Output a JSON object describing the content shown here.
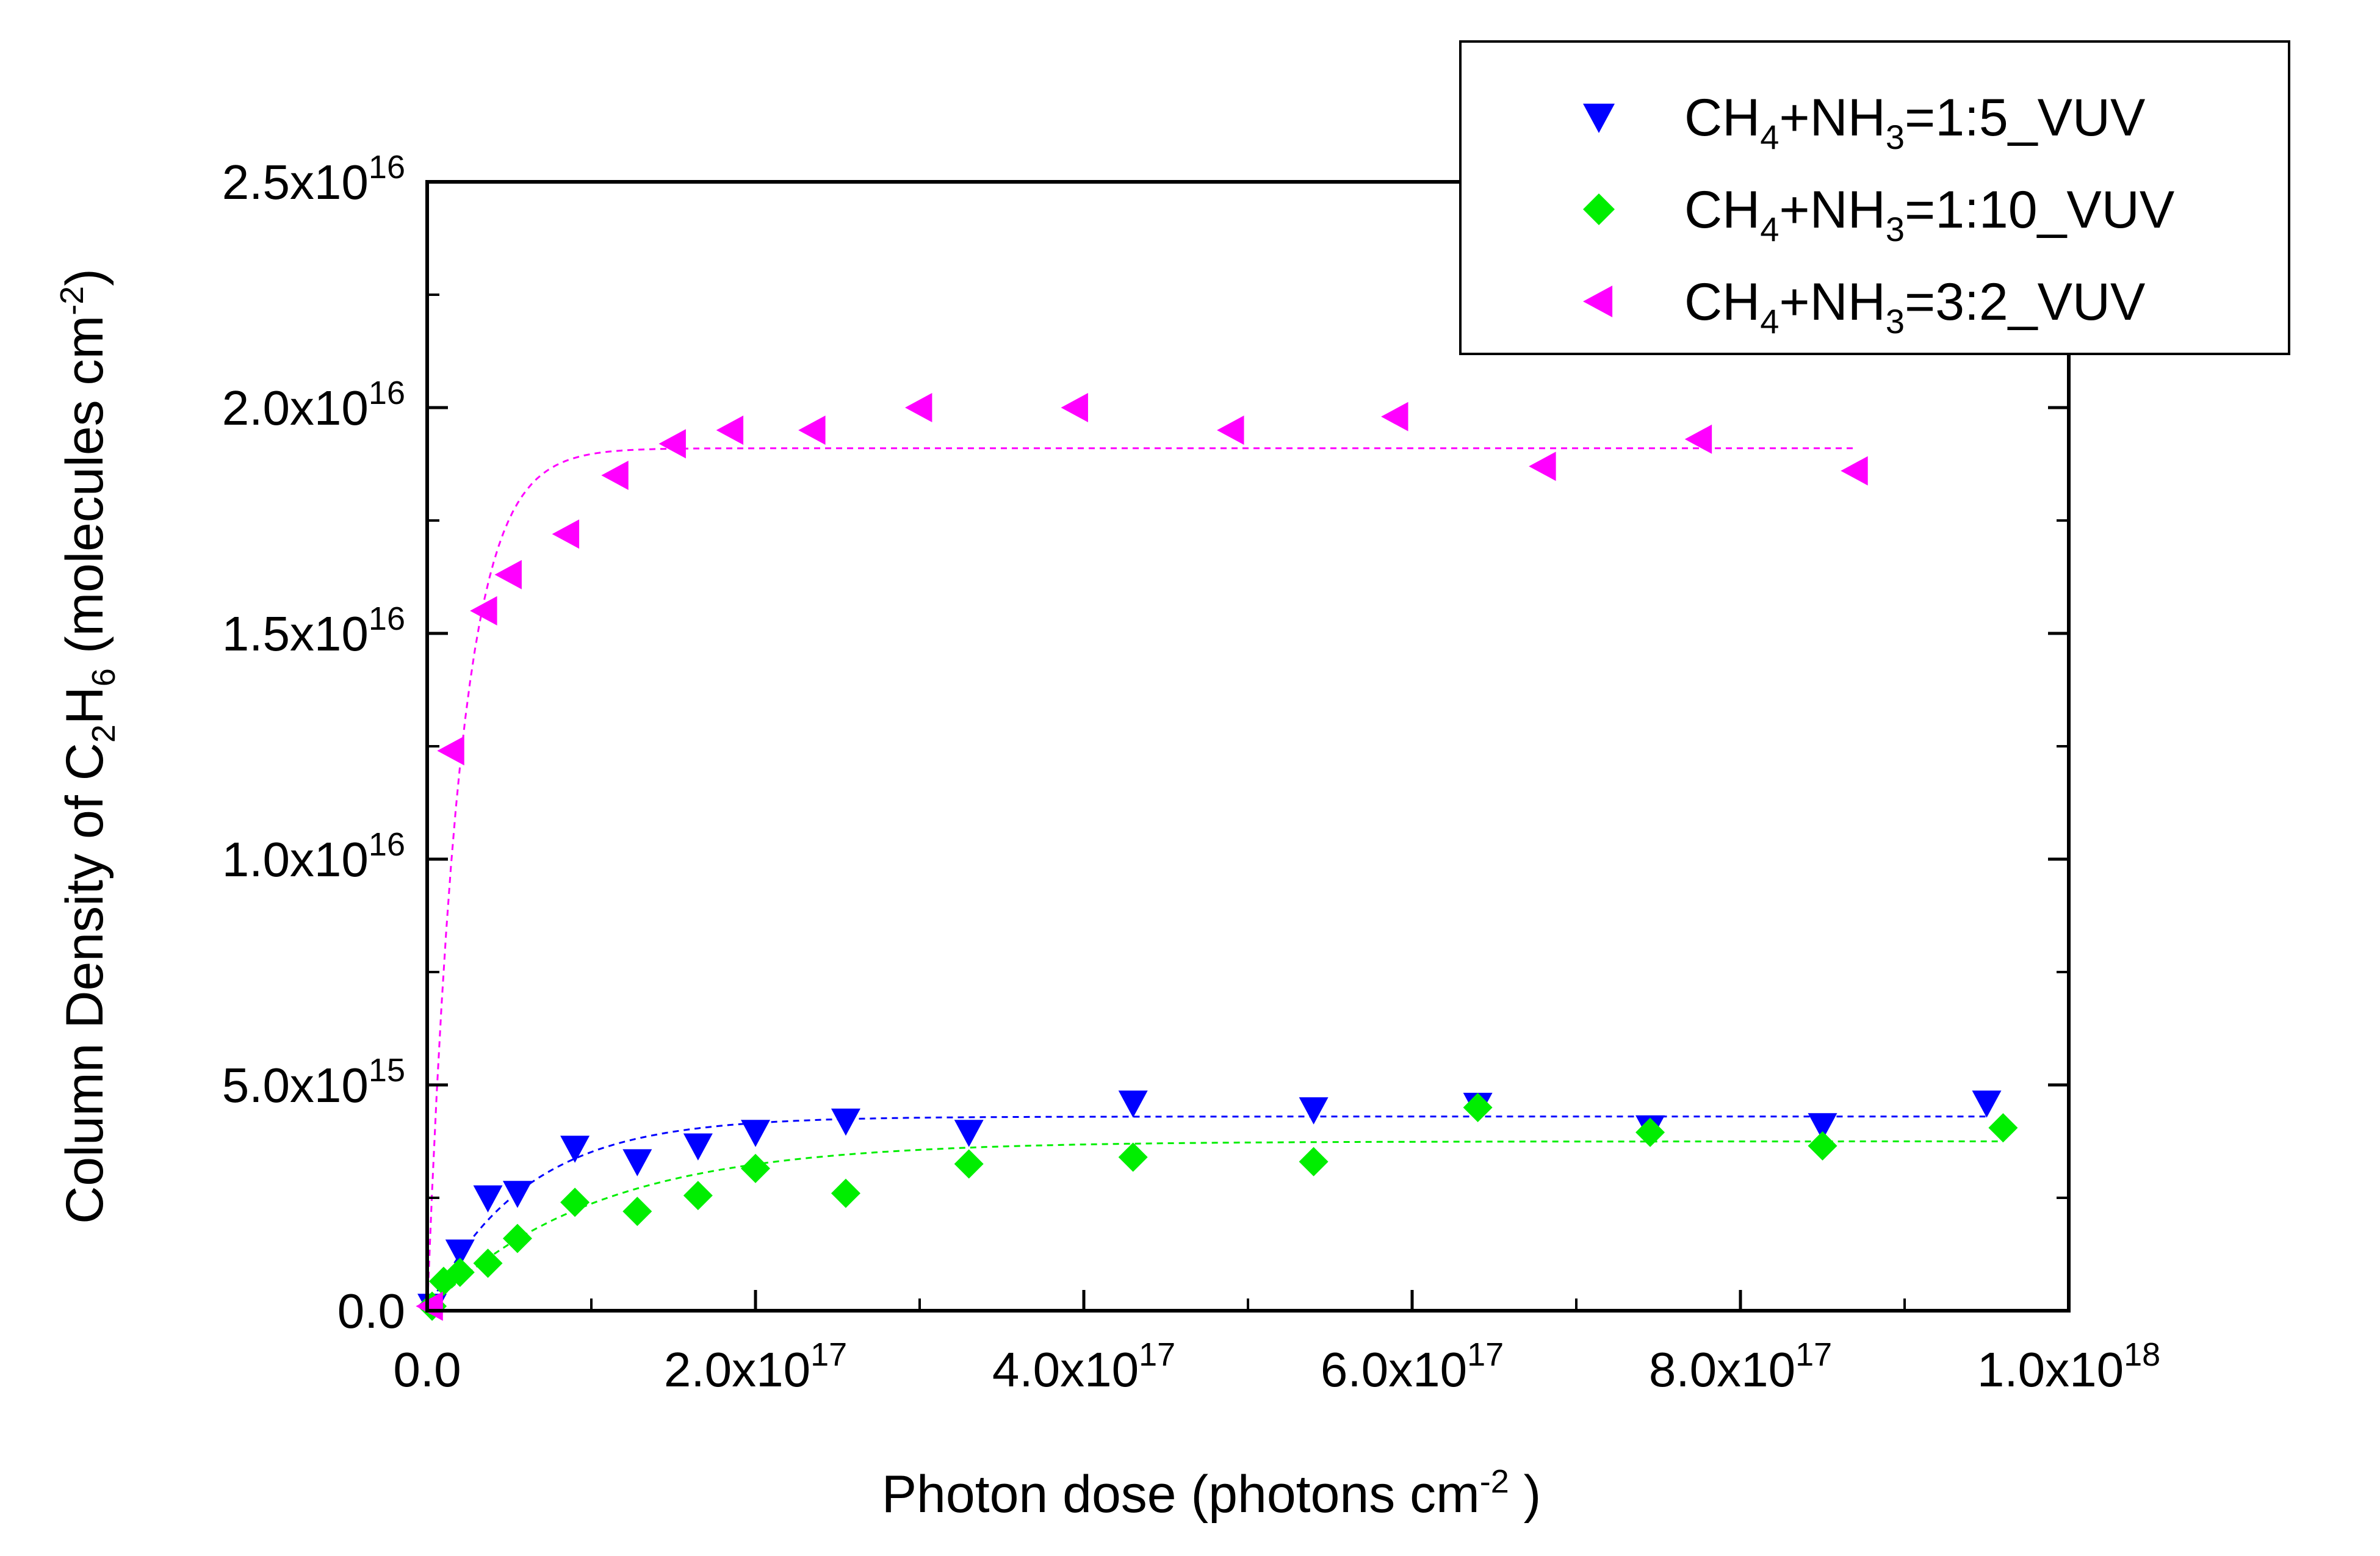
{
  "chart_data": {
    "type": "scatter",
    "xlabel": "Photon dose (photons cm⁻² )",
    "ylabel": "Column Density of C₂H₆ (molecules cm⁻²)",
    "xlim": [
      0,
      1e+18
    ],
    "ylim": [
      0,
      2.5e+16
    ],
    "x_ticks": [
      {
        "value": 0,
        "label": "0.0",
        "exp": ""
      },
      {
        "value": 2e+17,
        "label": "2.0x10",
        "exp": "17"
      },
      {
        "value": 4e+17,
        "label": "4.0x10",
        "exp": "17"
      },
      {
        "value": 6e+17,
        "label": "6.0x10",
        "exp": "17"
      },
      {
        "value": 8e+17,
        "label": "8.0x10",
        "exp": "17"
      },
      {
        "value": 1e+18,
        "label": "1.0x10",
        "exp": "18"
      }
    ],
    "y_ticks": [
      {
        "value": 0,
        "label": "0.0",
        "exp": ""
      },
      {
        "value": 5000000000000000.0,
        "label": "5.0x10",
        "exp": "15"
      },
      {
        "value": 1e+16,
        "label": "1.0x10",
        "exp": "16"
      },
      {
        "value": 1.5e+16,
        "label": "1.5x10",
        "exp": "16"
      },
      {
        "value": 2e+16,
        "label": "2.0x10",
        "exp": "16"
      },
      {
        "value": 2.5e+16,
        "label": "2.5x10",
        "exp": "16"
      }
    ],
    "grid": false,
    "legend_position": "top-right",
    "series": [
      {
        "name": "CH₄+NH₃=1:5_VUV",
        "color": "#0000ff",
        "marker": "triangle-down",
        "points": [
          [
            3000000000000000.0,
            100000000000000.0
          ],
          [
            2e+16,
            1300000000000000.0
          ],
          [
            3.7e+16,
            2500000000000000.0
          ],
          [
            5.5e+16,
            2600000000000000.0
          ],
          [
            9e+16,
            3600000000000000.0
          ],
          [
            1.28e+17,
            3300000000000000.0
          ],
          [
            1.65e+17,
            3650000000000000.0
          ],
          [
            2e+17,
            3950000000000000.0
          ],
          [
            2.55e+17,
            4200000000000000.0
          ],
          [
            3.3e+17,
            3950000000000000.0
          ],
          [
            4.3e+17,
            4600000000000000.0
          ],
          [
            5.4e+17,
            4450000000000000.0
          ],
          [
            6.4e+17,
            4550000000000000.0
          ],
          [
            7.45e+17,
            4050000000000000.0
          ],
          [
            8.5e+17,
            4100000000000000.0
          ],
          [
            9.5e+17,
            4600000000000000.0
          ]
        ],
        "fit": {
          "plateau": 4300000000000000.0,
          "rate": 1.7e-17
        }
      },
      {
        "name": "CH₄+NH₃=1:10_VUV",
        "color": "#00ee00",
        "marker": "diamond",
        "points": [
          [
            3000000000000000.0,
            100000000000000.0
          ],
          [
            1e+16,
            650000000000000.0
          ],
          [
            2e+16,
            850000000000000.0
          ],
          [
            3.7e+16,
            1050000000000000.0
          ],
          [
            5.5e+16,
            1600000000000000.0
          ],
          [
            9e+16,
            2400000000000000.0
          ],
          [
            1.28e+17,
            2200000000000000.0
          ],
          [
            1.65e+17,
            2550000000000000.0
          ],
          [
            2e+17,
            3150000000000000.0
          ],
          [
            2.55e+17,
            2600000000000000.0
          ],
          [
            3.3e+17,
            3250000000000000.0
          ],
          [
            4.3e+17,
            3400000000000000.0
          ],
          [
            5.4e+17,
            3300000000000000.0
          ],
          [
            6.4e+17,
            4500000000000000.0
          ],
          [
            7.45e+17,
            3950000000000000.0
          ],
          [
            8.5e+17,
            3650000000000000.0
          ],
          [
            9.6e+17,
            4050000000000000.0
          ]
        ],
        "fit": {
          "plateau": 3750000000000000.0,
          "rate": 1e-17
        }
      },
      {
        "name": "CH₄+NH₃=3:2_VUV",
        "color": "#ff00ff",
        "marker": "triangle-left",
        "points": [
          [
            2000000000000000.0,
            100000000000000.0
          ],
          [
            1.5e+16,
            1.24e+16
          ],
          [
            3.5e+16,
            1.55e+16
          ],
          [
            5e+16,
            1.63e+16
          ],
          [
            8.5e+16,
            1.72e+16
          ],
          [
            1.15e+17,
            1.85e+16
          ],
          [
            1.5e+17,
            1.92e+16
          ],
          [
            1.85e+17,
            1.95e+16
          ],
          [
            2.35e+17,
            1.95e+16
          ],
          [
            3e+17,
            2e+16
          ],
          [
            3.95e+17,
            2e+16
          ],
          [
            4.9e+17,
            1.95e+16
          ],
          [
            5.9e+17,
            1.98e+16
          ],
          [
            6.8e+17,
            1.87e+16
          ],
          [
            7.75e+17,
            1.93e+16
          ],
          [
            8.7e+17,
            1.86e+16
          ]
        ],
        "fit": {
          "plateau": 1.91e+16,
          "rate": 5e-17
        }
      }
    ]
  },
  "legend": {
    "items": [
      {
        "base": "CH",
        "sub1": "4",
        "mid": "+NH",
        "sub2": "3",
        "rest": "=1:5_VUV"
      },
      {
        "base": "CH",
        "sub1": "4",
        "mid": "+NH",
        "sub2": "3",
        "rest": "=1:10_VUV"
      },
      {
        "base": "CH",
        "sub1": "4",
        "mid": "+NH",
        "sub2": "3",
        "rest": "=3:2_VUV"
      }
    ]
  },
  "axis_titles": {
    "x": {
      "main": "Photon dose (photons cm",
      "sup": "-2",
      "tail": " )"
    },
    "y": {
      "p1": "Column Density of C",
      "s1": "2",
      "p2": "H",
      "s2": "6",
      "p3": " (molecules cm",
      "sup": "-2",
      "p4": ")"
    }
  }
}
